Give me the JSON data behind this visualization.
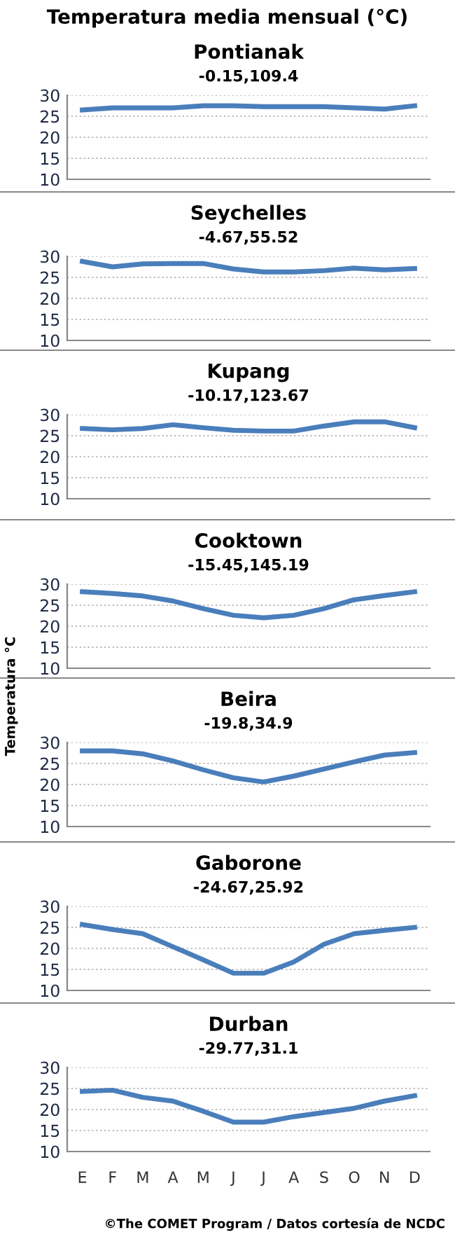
{
  "chart_data": [
    {
      "type": "line",
      "title": "Pontianak",
      "subtitle": "-0.15,109.4",
      "annotations": [
        "Temperatura media mensual (°C)"
      ],
      "categories": [
        null,
        null,
        null,
        null,
        null,
        null,
        null,
        null,
        null,
        null,
        null,
        null
      ],
      "series": [
        {
          "color": "#4a7ebb",
          "values": [
            26.5,
            27,
            27,
            27,
            27.5,
            27.5,
            27.3,
            27.3,
            27.3,
            27,
            26.7,
            27.5
          ]
        }
      ],
      "ylim": [
        10,
        30
      ],
      "yticks": [
        10,
        15,
        20,
        25,
        30
      ],
      "grid": "y",
      "tick_labels": "y"
    },
    {
      "type": "line",
      "title": "Seychelles",
      "subtitle": "-4.67,55.52",
      "categories": [
        null,
        null,
        null,
        null,
        null,
        null,
        null,
        null,
        null,
        null,
        null,
        null
      ],
      "series": [
        {
          "color": "#4a7ebb",
          "values": [
            28.8,
            27.5,
            28.2,
            28.3,
            28.3,
            27,
            26.3,
            26.3,
            26.6,
            27.2,
            26.8,
            27.1
          ]
        }
      ],
      "ylim": [
        10,
        30
      ],
      "yticks": [
        10,
        15,
        20,
        25,
        30
      ],
      "grid": "y",
      "tick_labels": "y"
    },
    {
      "type": "line",
      "title": "Kupang",
      "subtitle": "-10.17,123.67",
      "categories": [
        null,
        null,
        null,
        null,
        null,
        null,
        null,
        null,
        null,
        null,
        null,
        null
      ],
      "series": [
        {
          "color": "#4a7ebb",
          "values": [
            26.7,
            26.4,
            26.7,
            27.6,
            26.9,
            26.3,
            26.1,
            26.1,
            27.3,
            28.3,
            28.3,
            26.9
          ]
        }
      ],
      "ylim": [
        10,
        30
      ],
      "yticks": [
        10,
        15,
        20,
        25,
        30
      ],
      "grid": "y",
      "tick_labels": "y"
    },
    {
      "type": "line",
      "title": "Cooktown",
      "subtitle": "-15.45,145.19",
      "ylabel": "Temperatura °C",
      "categories": [
        null,
        null,
        null,
        null,
        null,
        null,
        null,
        null,
        null,
        null,
        null,
        null
      ],
      "series": [
        {
          "color": "#4a7ebb",
          "values": [
            28.2,
            27.8,
            27.2,
            26,
            24.2,
            22.6,
            22,
            22.6,
            24.2,
            26.3,
            27.3,
            28.2
          ]
        }
      ],
      "ylim": [
        10,
        30
      ],
      "yticks": [
        10,
        15,
        20,
        25,
        30
      ],
      "grid": "y",
      "tick_labels": "y"
    },
    {
      "type": "line",
      "title": "Beira",
      "subtitle": "-19.8,34.9",
      "categories": [
        null,
        null,
        null,
        null,
        null,
        null,
        null,
        null,
        null,
        null,
        null,
        null
      ],
      "series": [
        {
          "color": "#4a7ebb",
          "values": [
            28,
            28,
            27.3,
            25.6,
            23.5,
            21.6,
            20.6,
            22,
            23.7,
            25.4,
            27,
            27.6
          ]
        }
      ],
      "ylim": [
        10,
        30
      ],
      "yticks": [
        10,
        15,
        20,
        25,
        30
      ],
      "grid": "y",
      "tick_labels": "y"
    },
    {
      "type": "line",
      "title": "Gaborone",
      "subtitle": "-24.67,25.92",
      "categories": [
        null,
        null,
        null,
        null,
        null,
        null,
        null,
        null,
        null,
        null,
        null,
        null
      ],
      "series": [
        {
          "color": "#4a7ebb",
          "values": [
            25.7,
            24.5,
            23.5,
            20.4,
            17.3,
            14.1,
            14.1,
            16.8,
            21,
            23.5,
            24.3,
            25
          ]
        }
      ],
      "ylim": [
        10,
        30
      ],
      "yticks": [
        10,
        15,
        20,
        25,
        30
      ],
      "grid": "y",
      "tick_labels": "y"
    },
    {
      "type": "line",
      "title": "Durban",
      "subtitle": "-29.77,31.1",
      "annotations": [
        "©The COMET Program / Datos cortesía de NCDC"
      ],
      "categories": [
        "E",
        "F",
        "M",
        "A",
        "M",
        "J",
        "J",
        "A",
        "S",
        "O",
        "N",
        "D"
      ],
      "series": [
        {
          "color": "#4a7ebb",
          "values": [
            24.3,
            24.6,
            22.9,
            22,
            19.6,
            17,
            17,
            18.3,
            19.3,
            20.3,
            22,
            23.3
          ]
        }
      ],
      "ylim": [
        10,
        30
      ],
      "yticks": [
        10,
        15,
        20,
        25,
        30
      ],
      "grid": "y"
    }
  ]
}
